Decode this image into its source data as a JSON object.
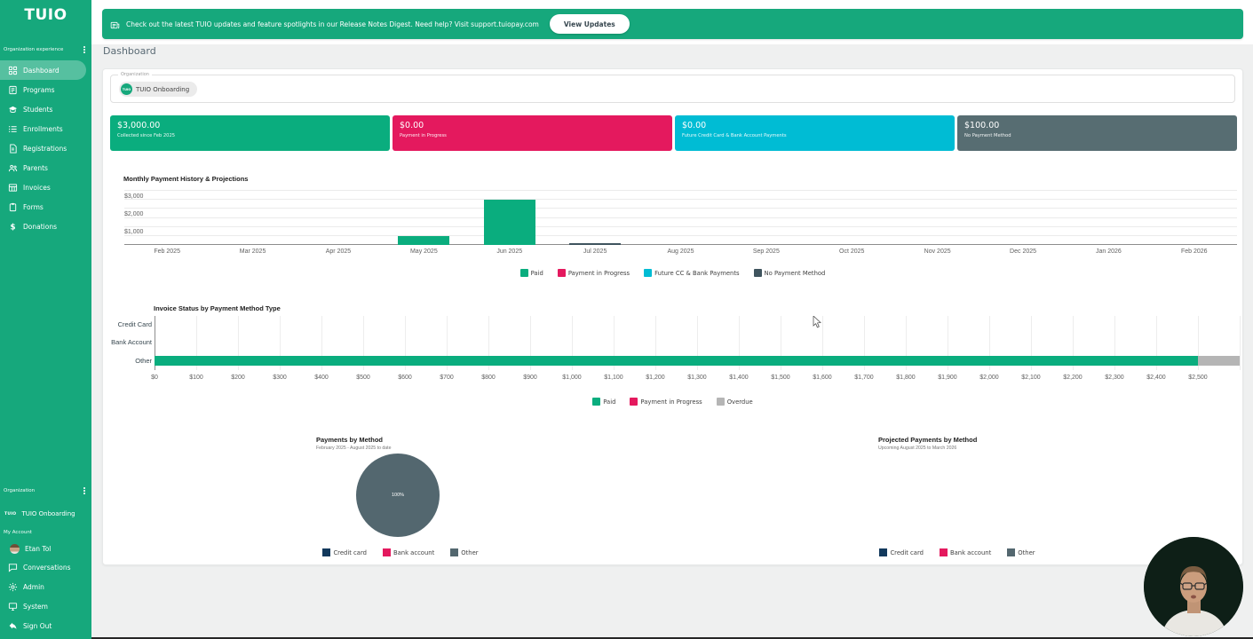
{
  "banner": {
    "text": "Check out the latest TUIO updates and feature spotlights in our Release Notes Digest. Need help? Visit support.tuiopay.com",
    "button_label": "View Updates"
  },
  "page_title": "Dashboard",
  "sidebar": {
    "logo": "TUIO",
    "section_label": "Organization experience",
    "items": [
      {
        "label": "Dashboard",
        "icon": "dashboard-icon",
        "active": true
      },
      {
        "label": "Programs",
        "icon": "programs-icon",
        "active": false
      },
      {
        "label": "Students",
        "icon": "students-icon",
        "active": false
      },
      {
        "label": "Enrollments",
        "icon": "enrollments-icon",
        "active": false
      },
      {
        "label": "Registrations",
        "icon": "registrations-icon",
        "active": false
      },
      {
        "label": "Parents",
        "icon": "parents-icon",
        "active": false
      },
      {
        "label": "Invoices",
        "icon": "invoices-icon",
        "active": false
      },
      {
        "label": "Forms",
        "icon": "forms-icon",
        "active": false
      },
      {
        "label": "Donations",
        "icon": "donations-icon",
        "active": false
      }
    ],
    "bottom": {
      "org_label": "Organization",
      "org_mini": "TUIO",
      "org_name": "TUIO Onboarding",
      "account_label": "My Account",
      "user_name": "Etan Tol",
      "items": [
        {
          "label": "Conversations",
          "icon": "conversations-icon"
        },
        {
          "label": "Admin",
          "icon": "admin-icon"
        },
        {
          "label": "System",
          "icon": "system-icon"
        },
        {
          "label": "Sign Out",
          "icon": "sign-out-icon"
        }
      ]
    }
  },
  "organization_field": {
    "label": "Organization",
    "chip_avatar": "TUIO",
    "chip_name": "TUIO Onboarding"
  },
  "stat_cards": [
    {
      "amount": "$3,000.00",
      "label": "Collected since Feb 2025",
      "color": "#0aad7e"
    },
    {
      "amount": "$0.00",
      "label": "Payment in Progress",
      "color": "#e4195e"
    },
    {
      "amount": "$0.00",
      "label": "Future Credit Card & Bank Account Payments",
      "color": "#00bcd4"
    },
    {
      "amount": "$100.00",
      "label": "No Payment Method",
      "color": "#576d72"
    }
  ],
  "colors": {
    "primary_green": "#16a87c",
    "paid_green": "#0aad7e",
    "crimson": "#e4195e",
    "teal": "#00bcd4",
    "slate": "#53676f",
    "navy": "#12395c",
    "dark_slate": "#3f545e",
    "overdue_gray": "#b5b5b5"
  },
  "chart_data": [
    {
      "type": "bar",
      "title": "Monthly Payment History & Projections",
      "categories": [
        "Feb 2025",
        "Mar 2025",
        "Apr 2025",
        "May 2025",
        "Jun 2025",
        "Jul 2025",
        "Aug 2025",
        "Sep 2025",
        "Oct 2025",
        "Nov 2025",
        "Dec 2025",
        "Jan 2026",
        "Feb 2026"
      ],
      "series": [
        {
          "name": "Paid",
          "color": "#0aad7e",
          "values": [
            0,
            0,
            0,
            500,
            2500,
            0,
            0,
            0,
            0,
            0,
            0,
            0,
            0
          ]
        },
        {
          "name": "Payment in Progress",
          "color": "#e4195e",
          "values": [
            0,
            0,
            0,
            0,
            0,
            0,
            0,
            0,
            0,
            0,
            0,
            0,
            0
          ]
        },
        {
          "name": "Future CC & Bank Payments",
          "color": "#00bcd4",
          "values": [
            0,
            0,
            0,
            0,
            0,
            0,
            0,
            0,
            0,
            0,
            0,
            0,
            0
          ]
        },
        {
          "name": "No Payment Method",
          "color": "#3f545e",
          "values": [
            0,
            0,
            0,
            0,
            0,
            100,
            0,
            0,
            0,
            0,
            0,
            0,
            0
          ]
        }
      ],
      "stacked": true,
      "ylim": [
        0,
        3200
      ],
      "grid_step": 500,
      "yticks": [
        {
          "value": 1000,
          "label": "$1,000"
        },
        {
          "value": 2000,
          "label": "$2,000"
        },
        {
          "value": 3000,
          "label": "$3,000"
        }
      ],
      "legend_position": "bottom"
    },
    {
      "type": "bar",
      "orientation": "horizontal",
      "title": "Invoice Status by Payment Method Type",
      "categories": [
        "Credit Card",
        "Bank Account",
        "Other"
      ],
      "series": [
        {
          "name": "Paid",
          "color": "#0aad7e",
          "values": [
            0,
            0,
            2500
          ]
        },
        {
          "name": "Payment in Progress",
          "color": "#e4195e",
          "values": [
            0,
            0,
            0
          ]
        },
        {
          "name": "Overdue",
          "color": "#b5b5b5",
          "values": [
            0,
            0,
            100
          ]
        }
      ],
      "stacked": true,
      "xlim": [
        0,
        2600
      ],
      "xtick_step": 100,
      "xtick_label_max": 2500,
      "legend_position": "bottom"
    },
    {
      "type": "pie",
      "title": "Payments by Method",
      "subtitle": "February 2025 - August 2025 to date",
      "center_label": "100%",
      "slices": [
        {
          "name": "Credit card",
          "color": "#12395c",
          "pct": 0
        },
        {
          "name": "Bank account",
          "color": "#e4195e",
          "pct": 0
        },
        {
          "name": "Other",
          "color": "#53676f",
          "pct": 100
        }
      ],
      "legend_position": "bottom"
    },
    {
      "type": "pie",
      "title": "Projected Payments by Method",
      "subtitle": "Upcoming August 2025 to March 2026",
      "empty": true,
      "slices": [
        {
          "name": "Credit card",
          "color": "#12395c",
          "pct": 0
        },
        {
          "name": "Bank account",
          "color": "#e4195e",
          "pct": 0
        },
        {
          "name": "Other",
          "color": "#53676f",
          "pct": 0
        }
      ],
      "legend_position": "bottom"
    }
  ]
}
